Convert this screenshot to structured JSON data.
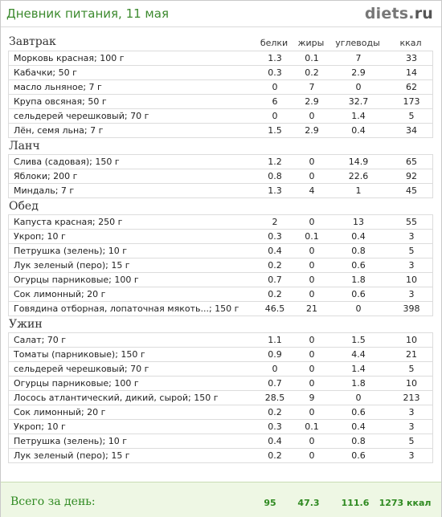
{
  "header": {
    "title": "Дневник питания, 11 мая",
    "brand_main": "diets",
    "brand_dot": ".",
    "brand_tld": "ru"
  },
  "columns": {
    "protein": "белки",
    "fat": "жиры",
    "carbs": "углеводы",
    "kcal": "ккал"
  },
  "meals": [
    {
      "title": "Завтрак",
      "items": [
        {
          "name": "Морковь красная; 100 г",
          "protein": "1.3",
          "fat": "0.1",
          "carbs": "7",
          "kcal": "33"
        },
        {
          "name": "Кабачки; 50 г",
          "protein": "0.3",
          "fat": "0.2",
          "carbs": "2.9",
          "kcal": "14"
        },
        {
          "name": "масло льняное; 7 г",
          "protein": "0",
          "fat": "7",
          "carbs": "0",
          "kcal": "62"
        },
        {
          "name": "Крупа овсяная; 50 г",
          "protein": "6",
          "fat": "2.9",
          "carbs": "32.7",
          "kcal": "173"
        },
        {
          "name": "сельдерей черешковый; 70 г",
          "protein": "0",
          "fat": "0",
          "carbs": "1.4",
          "kcal": "5"
        },
        {
          "name": "Лён, семя льна; 7 г",
          "protein": "1.5",
          "fat": "2.9",
          "carbs": "0.4",
          "kcal": "34"
        }
      ]
    },
    {
      "title": "Ланч",
      "items": [
        {
          "name": "Слива (садовая); 150 г",
          "protein": "1.2",
          "fat": "0",
          "carbs": "14.9",
          "kcal": "65"
        },
        {
          "name": "Яблоки; 200 г",
          "protein": "0.8",
          "fat": "0",
          "carbs": "22.6",
          "kcal": "92"
        },
        {
          "name": "Миндаль; 7 г",
          "protein": "1.3",
          "fat": "4",
          "carbs": "1",
          "kcal": "45"
        }
      ]
    },
    {
      "title": "Обед",
      "items": [
        {
          "name": "Капуста красная; 250 г",
          "protein": "2",
          "fat": "0",
          "carbs": "13",
          "kcal": "55"
        },
        {
          "name": "Укроп; 10 г",
          "protein": "0.3",
          "fat": "0.1",
          "carbs": "0.4",
          "kcal": "3"
        },
        {
          "name": "Петрушка (зелень); 10 г",
          "protein": "0.4",
          "fat": "0",
          "carbs": "0.8",
          "kcal": "5"
        },
        {
          "name": "Лук зеленый (перо); 15 г",
          "protein": "0.2",
          "fat": "0",
          "carbs": "0.6",
          "kcal": "3"
        },
        {
          "name": "Огурцы парниковые; 100 г",
          "protein": "0.7",
          "fat": "0",
          "carbs": "1.8",
          "kcal": "10"
        },
        {
          "name": "Сок лимонный; 20 г",
          "protein": "0.2",
          "fat": "0",
          "carbs": "0.6",
          "kcal": "3"
        },
        {
          "name": "Говядина отборная, лопаточная мякоть...; 150 г",
          "protein": "46.5",
          "fat": "21",
          "carbs": "0",
          "kcal": "398"
        }
      ]
    },
    {
      "title": "Ужин",
      "items": [
        {
          "name": "Салат; 70 г",
          "protein": "1.1",
          "fat": "0",
          "carbs": "1.5",
          "kcal": "10"
        },
        {
          "name": "Томаты (парниковые); 150 г",
          "protein": "0.9",
          "fat": "0",
          "carbs": "4.4",
          "kcal": "21"
        },
        {
          "name": "сельдерей черешковый; 70 г",
          "protein": "0",
          "fat": "0",
          "carbs": "1.4",
          "kcal": "5"
        },
        {
          "name": "Огурцы парниковые; 100 г",
          "protein": "0.7",
          "fat": "0",
          "carbs": "1.8",
          "kcal": "10"
        },
        {
          "name": "Лосось атлантический, дикий, сырой; 150 г",
          "protein": "28.5",
          "fat": "9",
          "carbs": "0",
          "kcal": "213"
        },
        {
          "name": "Сок лимонный; 20 г",
          "protein": "0.2",
          "fat": "0",
          "carbs": "0.6",
          "kcal": "3"
        },
        {
          "name": "Укроп; 10 г",
          "protein": "0.3",
          "fat": "0.1",
          "carbs": "0.4",
          "kcal": "3"
        },
        {
          "name": "Петрушка (зелень); 10 г",
          "protein": "0.4",
          "fat": "0",
          "carbs": "0.8",
          "kcal": "5"
        },
        {
          "name": "Лук зеленый (перо); 15 г",
          "protein": "0.2",
          "fat": "0",
          "carbs": "0.6",
          "kcal": "3"
        }
      ]
    }
  ],
  "totals": {
    "label": "Всего за день:",
    "protein": "95",
    "fat": "47.3",
    "carbs": "111.6",
    "kcal": "1273 ккал"
  },
  "colors": {
    "title_green": "#3c8a2e",
    "footer_bg": "#eef7e4",
    "footer_text": "#2f8a21",
    "border": "#dcdcdc"
  }
}
